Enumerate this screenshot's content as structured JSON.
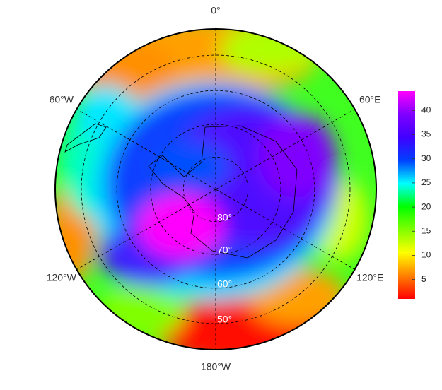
{
  "map": {
    "longitude_labels": [
      {
        "value": 0,
        "label": "0°"
      },
      {
        "value": 60,
        "label": "60°E"
      },
      {
        "value": 120,
        "label": "120°E"
      },
      {
        "value": 180,
        "label": "180°W"
      },
      {
        "value": -120,
        "label": "120°W"
      },
      {
        "value": -60,
        "label": "60°W"
      }
    ],
    "latitude_labels": [
      {
        "value": 80,
        "label": "80°"
      },
      {
        "value": 70,
        "label": "70°"
      },
      {
        "value": 60,
        "label": "60°"
      },
      {
        "value": 50,
        "label": "50°"
      }
    ],
    "colorbar": {
      "range": [
        1,
        44
      ],
      "ticks": [
        5,
        10,
        15,
        20,
        25,
        30,
        35,
        40
      ],
      "colors": [
        "#ff0000",
        "#ff8000",
        "#ffff00",
        "#80ff00",
        "#00ff00",
        "#00ffff",
        "#0040ff",
        "#4000ff",
        "#8000ff",
        "#ff00ff"
      ]
    }
  }
}
